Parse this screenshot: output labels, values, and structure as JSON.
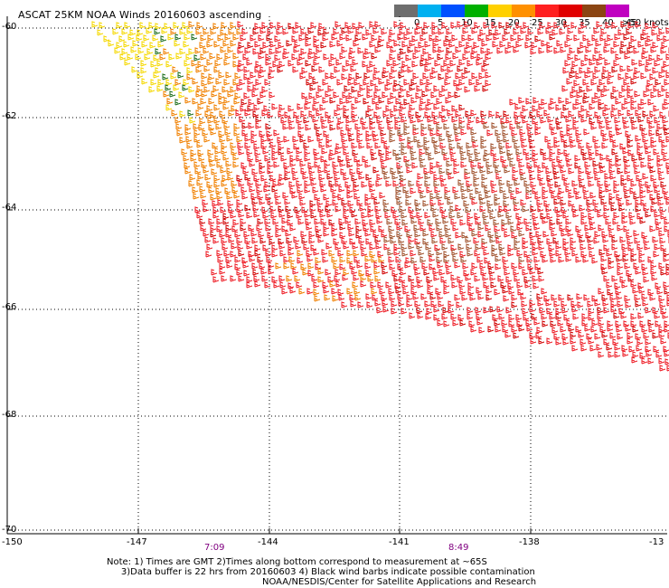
{
  "title": "ASCAT 25KM NOAA Winds 20160603 ascending",
  "colorbar": {
    "labels": [
      "0",
      "5",
      "10",
      "15",
      "20",
      "25",
      "30",
      "35",
      "40",
      "45"
    ],
    "unit": ">50 knots",
    "colors": [
      "#6e6e6e",
      "#00b0f0",
      "#0050ff",
      "#00b000",
      "#ffd000",
      "#ff9000",
      "#ff2020",
      "#e00000",
      "#8b4513",
      "#c000c0",
      "#5a007a"
    ]
  },
  "y_ticks": [
    "-60",
    "-62",
    "-64",
    "-66",
    "-68",
    "-70"
  ],
  "x_ticks": [
    "-150",
    "-147",
    "-144",
    "-141",
    "-138",
    "-13"
  ],
  "times": [
    "7:09",
    "8:49"
  ],
  "note": {
    "line1": "Note: 1) Times are GMT 2)Times along bottom correspond to measurement at ~65S",
    "line2": "3)Data buffer is 22 hrs from 20160603 4) Black wind barbs indicate possible contamination"
  },
  "credit": "NOAA/NESDIS/Center for Satellite Applications and Research"
}
